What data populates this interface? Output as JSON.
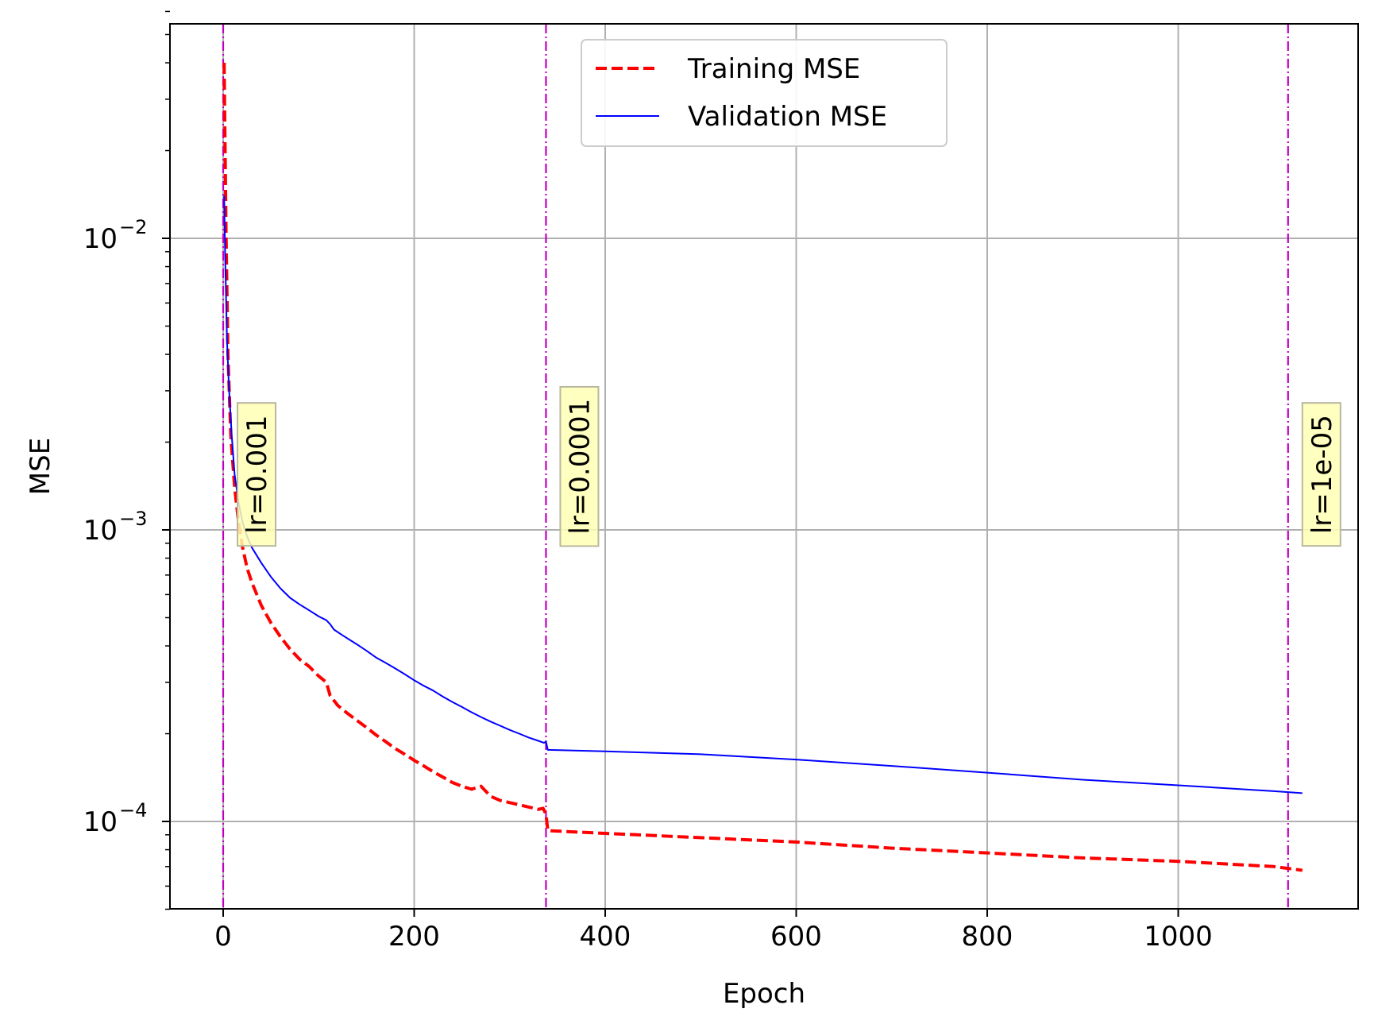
{
  "chart_data": {
    "type": "line",
    "xlabel": "Epoch",
    "ylabel": "MSE",
    "yscale": "log",
    "xlim": [
      -55,
      1180
    ],
    "ylim": [
      5e-05,
      0.06
    ],
    "grid": true,
    "legend_position": "upper center",
    "x_ticks": [
      0,
      200,
      400,
      600,
      800,
      1000
    ],
    "x_tick_labels": [
      "0",
      "200",
      "400",
      "600",
      "800",
      "1000"
    ],
    "y_major_ticks": [
      0.0001,
      0.001,
      0.01
    ],
    "y_tick_labels": [
      {
        "base": "10",
        "exp": "−4"
      },
      {
        "base": "10",
        "exp": "−3"
      },
      {
        "base": "10",
        "exp": "−2"
      }
    ],
    "series": [
      {
        "name": "Training MSE",
        "color": "#ff0000",
        "style": "dashed",
        "x": [
          1,
          3,
          5,
          8,
          12,
          16,
          20,
          25,
          30,
          40,
          50,
          60,
          70,
          80,
          90,
          100,
          108,
          112,
          120,
          130,
          140,
          150,
          160,
          170,
          180,
          190,
          200,
          210,
          220,
          230,
          240,
          250,
          260,
          270,
          280,
          290,
          300,
          310,
          320,
          330,
          335,
          338,
          340,
          400,
          500,
          600,
          700,
          800,
          900,
          1000,
          1100,
          1130
        ],
        "y": [
          0.04,
          0.0105,
          0.004,
          0.0021,
          0.0014,
          0.00107,
          0.00088,
          0.00074,
          0.00066,
          0.00055,
          0.00048,
          0.00043,
          0.00039,
          0.00036,
          0.00034,
          0.000315,
          0.0003,
          0.00027,
          0.00025,
          0.000235,
          0.000222,
          0.00021,
          0.000198,
          0.000188,
          0.000178,
          0.00017,
          0.000162,
          0.000155,
          0.000148,
          0.000142,
          0.000136,
          0.000132,
          0.000129,
          0.000132,
          0.000122,
          0.000118,
          0.000116,
          0.000114,
          0.000112,
          0.00011,
          0.000111,
          0.000106,
          9.3e-05,
          9.1e-05,
          8.8e-05,
          8.5e-05,
          8.1e-05,
          7.8e-05,
          7.5e-05,
          7.3e-05,
          7e-05,
          6.8e-05
        ]
      },
      {
        "name": "Validation MSE",
        "color": "#0000ff",
        "style": "solid",
        "x": [
          1,
          2,
          4,
          6,
          9,
          12,
          16,
          20,
          25,
          30,
          40,
          50,
          60,
          70,
          80,
          90,
          100,
          108,
          112,
          116,
          125,
          140,
          150,
          160,
          170,
          180,
          190,
          200,
          210,
          220,
          230,
          240,
          250,
          260,
          270,
          280,
          290,
          300,
          310,
          320,
          330,
          336,
          338,
          340,
          400,
          500,
          600,
          700,
          800,
          900,
          1000,
          1100,
          1130
        ],
        "y": [
          0.014,
          0.009,
          0.0045,
          0.0031,
          0.0021,
          0.00155,
          0.00125,
          0.00107,
          0.00095,
          0.00087,
          0.00077,
          0.00069,
          0.00063,
          0.000585,
          0.000555,
          0.00053,
          0.000505,
          0.00049,
          0.000475,
          0.000455,
          0.000435,
          0.000405,
          0.000385,
          0.000365,
          0.00035,
          0.000335,
          0.00032,
          0.000305,
          0.000292,
          0.000281,
          0.000268,
          0.000257,
          0.000247,
          0.000237,
          0.000228,
          0.00022,
          0.000213,
          0.000206,
          0.0002,
          0.000194,
          0.000189,
          0.000186,
          0.000188,
          0.000176,
          0.000174,
          0.00017,
          0.000163,
          0.000155,
          0.000147,
          0.000139,
          0.000133,
          0.000127,
          0.000125
        ]
      }
    ],
    "annotations": [
      {
        "x": 0,
        "label": "lr=0.001",
        "line_color": "#c000c0",
        "text_y": 0.00155
      },
      {
        "x": 338,
        "label": "lr=0.0001",
        "line_color": "#c000c0",
        "text_y": 0.00165
      },
      {
        "x": 1115,
        "label": "lr=1e-05",
        "line_color": "#c000c0",
        "text_y": 0.00155
      }
    ],
    "annotation_box_color": "#ffffb4"
  }
}
